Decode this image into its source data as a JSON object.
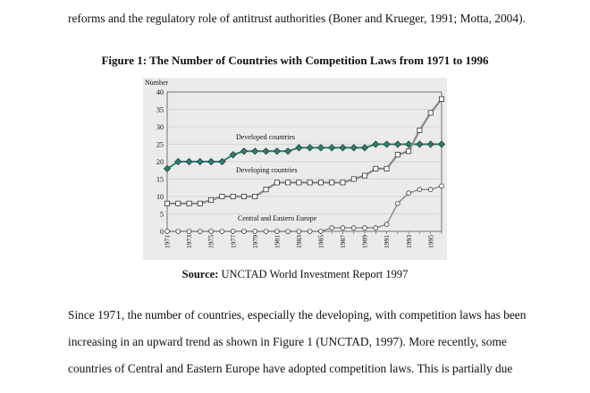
{
  "text": {
    "line_top": "reforms and the regulatory role of antitrust authorities (Boner and Krueger, 1991; Motta, 2004).",
    "figure_caption": "Figure 1: The Number of Countries with Competition Laws from 1971 to 1996",
    "source_label": "Source:",
    "source_text": " UNCTAD World Investment Report 1997",
    "para_line1": "Since 1971, the number of countries, especially the developing, with competition laws has been",
    "para_line2": "increasing in an upward trend as shown in Figure 1 (UNCTAD, 1997). More recently, some",
    "para_line3": "countries of Central and Eastern Europe have adopted competition laws. This is partially due"
  },
  "chart_data": {
    "type": "line",
    "title": "",
    "xlabel": "",
    "ylabel": "Number",
    "ylim": [
      0,
      40
    ],
    "yticks": [
      0,
      5,
      10,
      15,
      20,
      25,
      30,
      35,
      40
    ],
    "x": [
      1971,
      1972,
      1973,
      1974,
      1975,
      1976,
      1977,
      1978,
      1979,
      1980,
      1981,
      1982,
      1983,
      1984,
      1985,
      1986,
      1987,
      1988,
      1989,
      1990,
      1991,
      1992,
      1993,
      1994,
      1995,
      1996
    ],
    "xtick_labels": [
      "1971",
      "1973",
      "1975",
      "1977",
      "1979",
      "1981",
      "1983",
      "1985",
      "1987",
      "1989",
      "1991",
      "1993",
      "1995"
    ],
    "grid": true,
    "series": [
      {
        "name": "Developed countries",
        "marker": "diamond",
        "color": "#2f7d6d",
        "values": [
          18,
          20,
          20,
          20,
          20,
          20,
          22,
          23,
          23,
          23,
          23,
          23,
          24,
          24,
          24,
          24,
          24,
          24,
          24,
          25,
          25,
          25,
          25,
          25,
          25,
          25
        ]
      },
      {
        "name": "Developing countries",
        "marker": "square",
        "color": "#888888",
        "values": [
          8,
          8,
          8,
          8,
          9,
          10,
          10,
          10,
          10,
          12,
          14,
          14,
          14,
          14,
          14,
          14,
          14,
          15,
          16,
          18,
          18,
          22,
          23,
          29,
          34,
          38
        ]
      },
      {
        "name": "Central and Eastern Europe",
        "marker": "circle",
        "color": "#888888",
        "values": [
          0,
          0,
          0,
          0,
          0,
          0,
          0,
          0,
          0,
          0,
          0,
          0,
          0,
          0,
          0,
          1,
          1,
          1,
          1,
          1,
          2,
          8,
          11,
          12,
          12,
          13
        ]
      }
    ]
  }
}
